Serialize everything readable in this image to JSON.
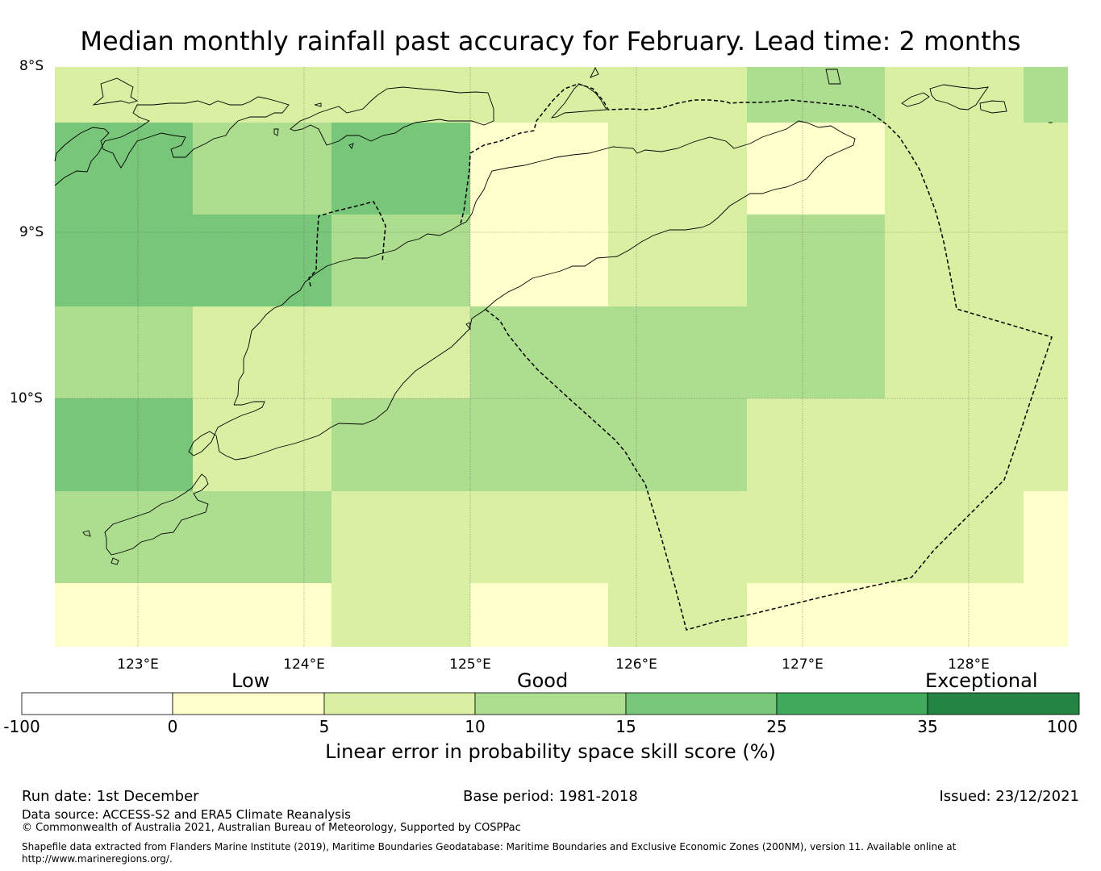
{
  "title": "Median monthly rainfall past accuracy for February. Lead time: 2 months",
  "map": {
    "lat_labels": [
      "8°S",
      "9°S",
      "10°S"
    ],
    "lon_labels": [
      "123°E",
      "124°E",
      "125°E",
      "126°E",
      "127°E",
      "128°E"
    ],
    "grid_values_pct": [
      [
        5,
        5,
        5,
        5,
        5,
        10,
        5,
        10
      ],
      [
        15,
        10,
        15,
        0,
        5,
        0,
        5,
        5
      ],
      [
        15,
        15,
        10,
        0,
        5,
        10,
        5,
        5
      ],
      [
        10,
        5,
        5,
        10,
        10,
        10,
        5,
        5
      ],
      [
        15,
        5,
        10,
        10,
        10,
        5,
        5,
        5
      ],
      [
        10,
        10,
        5,
        5,
        5,
        5,
        5,
        0
      ],
      [
        0,
        0,
        5,
        0,
        5,
        0,
        0,
        0
      ]
    ]
  },
  "colorbar": {
    "categories": [
      "Low",
      "Good",
      "Exceptional"
    ],
    "ticks": [
      "-100",
      "0",
      "5",
      "10",
      "15",
      "25",
      "35",
      "100"
    ],
    "colors": [
      "#ffffff",
      "#ffffcc",
      "#d9f0a3",
      "#addd8e",
      "#78c679",
      "#41ab5d",
      "#238443"
    ],
    "label": "Linear error in probability space skill score (%)"
  },
  "footer": {
    "run_date": "Run date: 1st December",
    "base_period": "Base period: 1981-2018",
    "issued": "Issued: 23/12/2021",
    "data_source": "Data source: ACCESS-S2 and ERA5 Climate Reanalysis",
    "copyright": "© Commonwealth of Australia 2021, Australian Bureau of Meteorology, Supported by COSPPac",
    "shapefile_line1": "Shapefile data extracted from Flanders Marine Institute (2019), Maritime Boundaries Geodatabase: Maritime Boundaries and Exclusive Economic Zones (200NM), version 11. Available online at",
    "shapefile_line2": "http://www.marineregions.org/."
  }
}
